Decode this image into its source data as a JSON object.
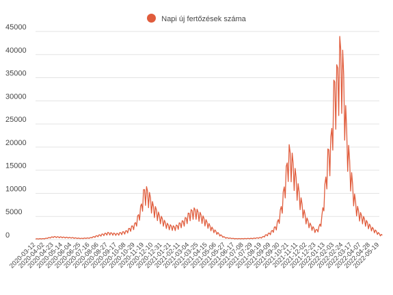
{
  "chart_data": {
    "type": "line",
    "title": "",
    "xlabel": "",
    "ylabel": "",
    "legend_position": "top-center",
    "grid": true,
    "ylim": [
      0,
      45000
    ],
    "yticks": [
      0,
      5000,
      10000,
      15000,
      20000,
      25000,
      30000,
      35000,
      40000,
      45000
    ],
    "x_tick_labels": [
      "2020-03-12",
      "2020-04-02",
      "2020-04-23",
      "2020-05-14",
      "2020-06-04",
      "2020-06-25",
      "2020-07-16",
      "2020-08-06",
      "2020-08-27",
      "2020-09-17",
      "2020-10-08",
      "2020-10-29",
      "2020-11-19",
      "2020-12-10",
      "2020-12-31",
      "2021-01-21",
      "2021-02-11",
      "2021-03-04",
      "2021-03-25",
      "2021-04-15",
      "2021-05-06",
      "2021-05-27",
      "2021-06-17",
      "2021-07-08",
      "2021-07-29",
      "2021-08-19",
      "2021-09-09",
      "2021-09-30",
      "2021-10-21",
      "2021-11-11",
      "2021-12-02",
      "2021-12-23",
      "2022-01-13",
      "2022-02-03",
      "2022-02-24",
      "2022-03-17",
      "2022-04-07",
      "2022-04-28",
      "2022-05-19"
    ],
    "series": [
      {
        "name": "Napi új fertőzések száma",
        "color": "#e05c3c",
        "x": [
          "2020-03-12",
          "2020-04-02",
          "2020-04-23",
          "2020-05-14",
          "2020-06-04",
          "2020-06-25",
          "2020-07-16",
          "2020-08-06",
          "2020-08-27",
          "2020-09-17",
          "2020-10-08",
          "2020-10-29",
          "2020-11-05",
          "2020-11-12",
          "2020-11-19",
          "2020-11-26",
          "2020-12-03",
          "2020-12-10",
          "2020-12-17",
          "2020-12-24",
          "2020-12-31",
          "2021-01-07",
          "2021-01-14",
          "2021-01-21",
          "2021-01-28",
          "2021-02-04",
          "2021-02-11",
          "2021-02-18",
          "2021-02-25",
          "2021-03-04",
          "2021-03-11",
          "2021-03-18",
          "2021-03-25",
          "2021-04-01",
          "2021-04-08",
          "2021-04-15",
          "2021-04-22",
          "2021-04-29",
          "2021-05-06",
          "2021-05-13",
          "2021-05-20",
          "2021-05-27",
          "2021-06-17",
          "2021-07-08",
          "2021-07-29",
          "2021-08-19",
          "2021-09-09",
          "2021-09-23",
          "2021-09-30",
          "2021-10-07",
          "2021-10-14",
          "2021-10-21",
          "2021-10-28",
          "2021-11-04",
          "2021-11-11",
          "2021-11-18",
          "2021-11-25",
          "2021-12-02",
          "2021-12-09",
          "2021-12-16",
          "2021-12-23",
          "2021-12-30",
          "2022-01-06",
          "2022-01-13",
          "2022-01-20",
          "2022-01-27",
          "2022-02-03",
          "2022-02-10",
          "2022-02-17",
          "2022-02-24",
          "2022-03-03",
          "2022-03-10",
          "2022-03-17",
          "2022-03-24",
          "2022-03-31",
          "2022-04-07",
          "2022-04-14",
          "2022-04-21",
          "2022-04-28",
          "2022-05-05",
          "2022-05-12",
          "2022-05-19",
          "2022-05-26"
        ],
        "values": [
          150,
          200,
          600,
          500,
          400,
          250,
          350,
          900,
          1400,
          1200,
          1700,
          3200,
          4800,
          6800,
          10300,
          10200,
          8800,
          6900,
          6200,
          5000,
          4300,
          3500,
          3000,
          2800,
          2600,
          2900,
          3400,
          3800,
          4500,
          5500,
          6000,
          6200,
          5600,
          5000,
          4200,
          3500,
          2700,
          2100,
          1600,
          1100,
          700,
          400,
          200,
          200,
          250,
          450,
          1500,
          3000,
          5200,
          8500,
          13500,
          18500,
          17000,
          14000,
          11000,
          8200,
          5800,
          4200,
          3200,
          2500,
          1900,
          2500,
          4800,
          11000,
          18000,
          20000,
          32000,
          34000,
          40000,
          36000,
          24000,
          17000,
          12000,
          8000,
          6000,
          5000,
          4300,
          3500,
          2800,
          2200,
          1700,
          1200,
          900
        ]
      }
    ]
  }
}
